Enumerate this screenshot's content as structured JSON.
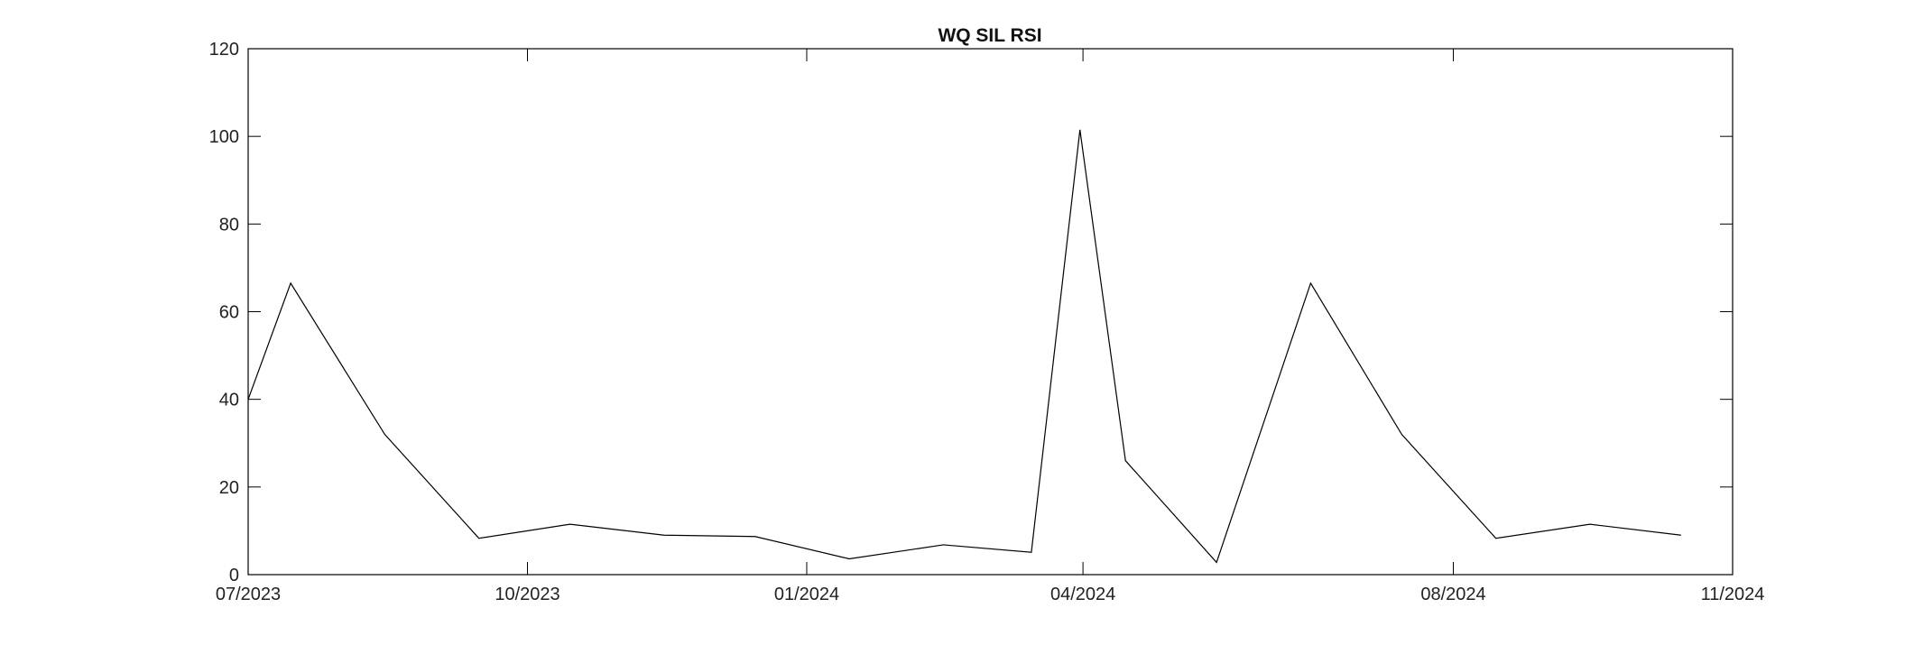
{
  "chart_data": {
    "type": "line",
    "title": "WQ SIL RSI",
    "xlabel": "",
    "ylabel": "",
    "xlim": [
      "2023-07-01",
      "2024-11-01"
    ],
    "ylim": [
      0,
      120
    ],
    "y_ticks": [
      0,
      20,
      40,
      60,
      80,
      100,
      120
    ],
    "x_ticks": [
      {
        "date": "2023-07-01",
        "label": "07/2023"
      },
      {
        "date": "2023-10-01",
        "label": "10/2023"
      },
      {
        "date": "2024-01-01",
        "label": "01/2024"
      },
      {
        "date": "2024-04-01",
        "label": "04/2024"
      },
      {
        "date": "2024-08-01",
        "label": "08/2024"
      },
      {
        "date": "2024-11-01",
        "label": "11/2024"
      }
    ],
    "grid": false,
    "series": [
      {
        "color": "#000000",
        "points": [
          {
            "x": "2023-07-01",
            "y": 40
          },
          {
            "x": "2023-07-15",
            "y": 66.5
          },
          {
            "x": "2023-08-15",
            "y": 32
          },
          {
            "x": "2023-09-15",
            "y": 8.3
          },
          {
            "x": "2023-10-15",
            "y": 11.5
          },
          {
            "x": "2023-11-15",
            "y": 9
          },
          {
            "x": "2023-12-15",
            "y": 8.7
          },
          {
            "x": "2024-01-15",
            "y": 3.6
          },
          {
            "x": "2024-02-15",
            "y": 6.8
          },
          {
            "x": "2024-03-15",
            "y": 5.1
          },
          {
            "x": "2024-03-31",
            "y": 101.5
          },
          {
            "x": "2024-04-15",
            "y": 26
          },
          {
            "x": "2024-05-15",
            "y": 2.8
          },
          {
            "x": "2024-06-15",
            "y": 66.5
          },
          {
            "x": "2024-07-15",
            "y": 32
          },
          {
            "x": "2024-08-15",
            "y": 8.3
          },
          {
            "x": "2024-09-15",
            "y": 11.5
          },
          {
            "x": "2024-10-15",
            "y": 9
          }
        ]
      }
    ]
  }
}
